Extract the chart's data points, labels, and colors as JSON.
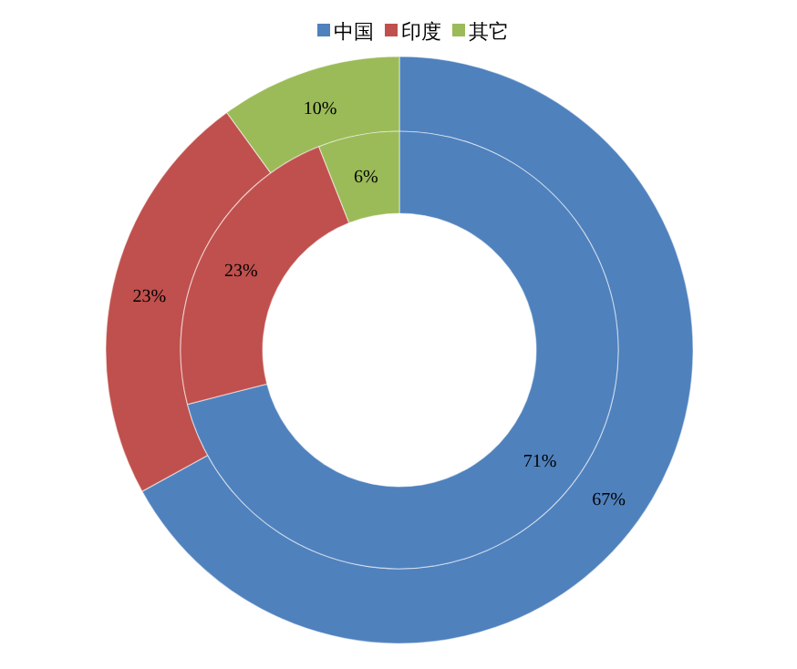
{
  "chart_data": {
    "type": "donut",
    "categories": [
      "中国",
      "印度",
      "其它"
    ],
    "colors": [
      "#4f81bd",
      "#c0504d",
      "#9bbb59"
    ],
    "legend": "top",
    "series": [
      {
        "values": [
          67,
          23,
          10
        ],
        "value_labels": [
          "67%",
          "23%",
          "10%"
        ]
      },
      {
        "values": [
          71,
          23,
          6
        ],
        "value_labels": [
          "71%",
          "23%",
          "6%"
        ]
      }
    ]
  }
}
